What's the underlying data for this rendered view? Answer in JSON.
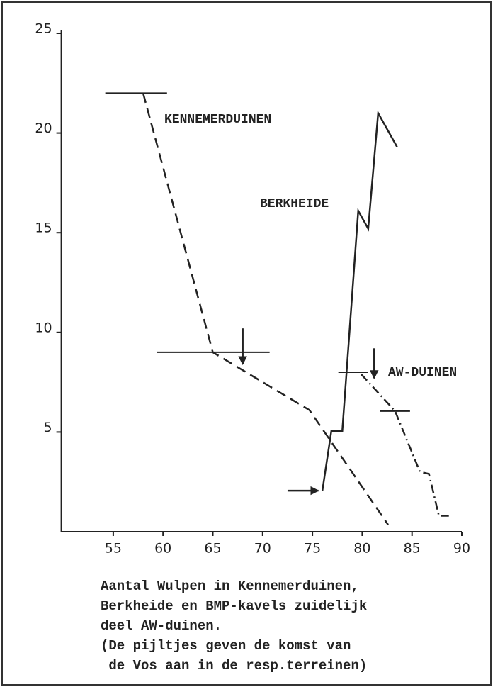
{
  "chart_data": {
    "type": "line",
    "xlim": [
      50,
      90
    ],
    "ylim": [
      0,
      25
    ],
    "xticks": [
      55,
      60,
      65,
      70,
      75,
      80,
      85,
      90
    ],
    "yticks": [
      5,
      10,
      15,
      20,
      25
    ],
    "series": [
      {
        "name": "KENNEMERDUINEN",
        "color": "#222222",
        "dash": "dashed",
        "x": [
          58,
          65,
          74.7,
          82.6
        ],
        "values": [
          22,
          9,
          6.1,
          0.35
        ],
        "ranges": [
          {
            "y": 22,
            "x": [
              54.2,
              60.4
            ]
          },
          {
            "y": 9,
            "x": [
              59.4,
              70.7
            ]
          }
        ],
        "arrows": [
          {
            "from": [
              68,
              10.2
            ],
            "to": [
              68,
              8.4
            ]
          }
        ]
      },
      {
        "name": "BERKHEIDE",
        "color": "#222222",
        "dash": "solid",
        "x": [
          76,
          76.9,
          78,
          79.6,
          80.6,
          81.6,
          83.5
        ],
        "values": [
          2.06,
          5.05,
          5.05,
          16.1,
          15.2,
          21,
          19.3
        ],
        "ranges": [],
        "arrows": [
          {
            "from": [
              72.5,
              2.06
            ],
            "to": [
              75.6,
              2.06
            ]
          }
        ]
      },
      {
        "name": "AW-DUINEN",
        "color": "#222222",
        "dash": "dashdot",
        "x": [
          79.9,
          83.3,
          85.8,
          86.7,
          87.7,
          88.7
        ],
        "values": [
          7.9,
          6.05,
          3.0,
          2.9,
          0.8,
          0.8
        ],
        "ranges": [
          {
            "y": 8,
            "x": [
              77.6,
              80.6
            ]
          },
          {
            "y": 6.05,
            "x": [
              81.8,
              84.8
            ]
          }
        ],
        "arrows": [
          {
            "from": [
              81.2,
              9.2
            ],
            "to": [
              81.2,
              7.7
            ]
          }
        ]
      }
    ],
    "caption": [
      "Aantal Wulpen in Kennemerduinen,",
      "Berkheide en BMP-kavels zuidelijk",
      "deel AW-duinen.",
      "(De pijltjes geven de komst van",
      " de Vos aan in de resp.terreinen)"
    ]
  }
}
